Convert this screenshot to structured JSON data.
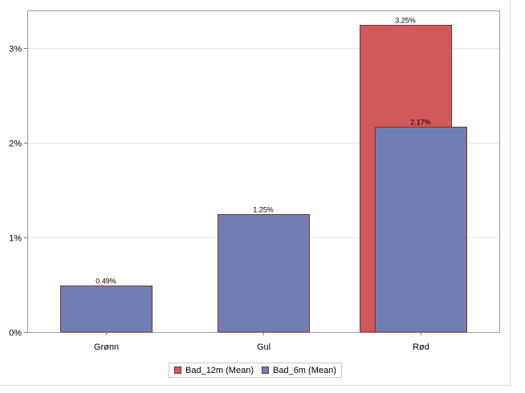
{
  "chart_data": {
    "type": "bar",
    "title": "",
    "xlabel": "",
    "ylabel": "",
    "categories": [
      "Grønn",
      "Gul",
      "Rød"
    ],
    "series": [
      {
        "name": "Bad_12m (Mean)",
        "values": [
          null,
          null,
          3.25
        ],
        "labels": [
          "",
          "",
          "3.25%"
        ],
        "color": "#d05a5a"
      },
      {
        "name": "Bad_6m (Mean)",
        "values": [
          0.49,
          1.25,
          2.17
        ],
        "labels": [
          "0.49%",
          "1.25%",
          "2.17%"
        ],
        "color": "#6f7fb6"
      }
    ],
    "y_ticks": [
      0,
      1,
      2,
      3
    ],
    "y_tick_labels": [
      "0%",
      "1%",
      "2%",
      "3%"
    ],
    "ylim": [
      0,
      3.4
    ],
    "grid": true,
    "bar_border_color": "#8b2a2a",
    "legend_position": "bottom-center"
  }
}
